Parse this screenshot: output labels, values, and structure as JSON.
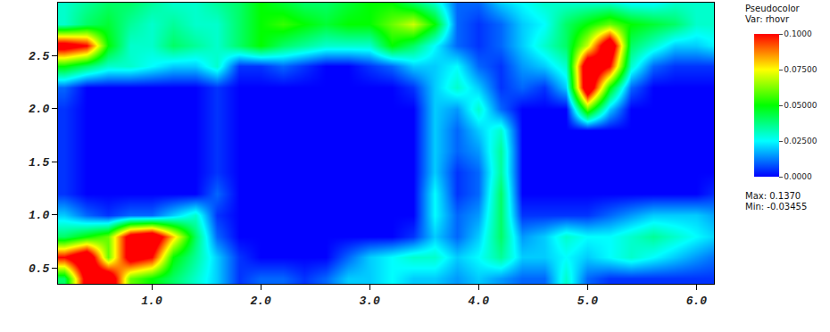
{
  "chart_data": {
    "type": "heatmap",
    "x": [
      0.2,
      0.4,
      0.6,
      0.8,
      1.0,
      1.2,
      1.4,
      1.6,
      1.8,
      2.0,
      2.2,
      2.4,
      2.6,
      2.8,
      3.0,
      3.2,
      3.4,
      3.6,
      3.8,
      4.0,
      4.2,
      4.4,
      4.6,
      4.8,
      5.0,
      5.2,
      5.4,
      5.6,
      5.8,
      6.0,
      6.2
    ],
    "y": [
      0.4,
      0.6,
      0.8,
      1.0,
      1.2,
      1.4,
      1.6,
      1.8,
      2.0,
      2.2,
      2.4,
      2.6,
      2.8,
      3.0
    ],
    "cells": [
      [
        0.04,
        0.11,
        0.12,
        0.06,
        0.05,
        0.04,
        0.03,
        0.02,
        0.005,
        0.01,
        0.01,
        0.005,
        0.01,
        0.02,
        0.02,
        0.025,
        0.02,
        0.02,
        0.015,
        0.02,
        0.015,
        0.01,
        0.01,
        0.03,
        0.01,
        0.005,
        0.005,
        0.005,
        0.005,
        0.005,
        0.005
      ],
      [
        0.1,
        0.12,
        0.06,
        0.11,
        0.1,
        0.05,
        0.035,
        0.02,
        0.005,
        0,
        0,
        0,
        0,
        0.01,
        0.02,
        0.025,
        0.03,
        0.03,
        0.02,
        0.025,
        0.035,
        0.02,
        0.02,
        0.025,
        0.02,
        0.025,
        0.03,
        0.025,
        0.02,
        0.015,
        0.01
      ],
      [
        0.04,
        0.05,
        0.06,
        0.11,
        0.12,
        0.08,
        0.04,
        0.01,
        0,
        0,
        0,
        0,
        0,
        0,
        0,
        0,
        0.005,
        0.02,
        0.01,
        0.02,
        0.04,
        0.015,
        0.02,
        0.03,
        0.025,
        0.025,
        0.03,
        0.035,
        0.03,
        0.025,
        0.02
      ],
      [
        0.02,
        0.01,
        0.005,
        0.01,
        0.01,
        0.02,
        0.03,
        0.005,
        0,
        0,
        0,
        0,
        0,
        0,
        0,
        0,
        0,
        0.025,
        0.01,
        0.015,
        0.04,
        0.005,
        0.005,
        0.005,
        0.005,
        0.01,
        0.015,
        0.02,
        0.02,
        0.02,
        0.015
      ],
      [
        0.005,
        0,
        0,
        0,
        0,
        0,
        0,
        0.01,
        0,
        0,
        0,
        0,
        0,
        0,
        0,
        0,
        0,
        0.025,
        0.005,
        0.01,
        0.04,
        0,
        0,
        0,
        0,
        0,
        0,
        0,
        0,
        0,
        0.005
      ],
      [
        0.005,
        0,
        0,
        0,
        0,
        0,
        0,
        0.005,
        0,
        0,
        0,
        0,
        0,
        0,
        0,
        0,
        0,
        0.02,
        0.005,
        0.01,
        0.035,
        0,
        0,
        0,
        0,
        0,
        0,
        0,
        0,
        0,
        0
      ],
      [
        0.005,
        0,
        0,
        0,
        0,
        0,
        0,
        0.005,
        0,
        0,
        0,
        0,
        0,
        0,
        0,
        0,
        0,
        0.02,
        0.01,
        0.015,
        0.035,
        0,
        0,
        0,
        0,
        0,
        0,
        0,
        0,
        0,
        0
      ],
      [
        0.005,
        0,
        0,
        0,
        0,
        0,
        0,
        0.005,
        0,
        0,
        0,
        0,
        0,
        0,
        0,
        0,
        0,
        0.02,
        0.01,
        0.02,
        0.03,
        0,
        0,
        0,
        0,
        0,
        0,
        0,
        0,
        0,
        0
      ],
      [
        0.005,
        0,
        0,
        0,
        0,
        0,
        0,
        0.005,
        0,
        0,
        0,
        0,
        0,
        0,
        0,
        0,
        0,
        0.02,
        0.015,
        0.03,
        0.01,
        0,
        0,
        0,
        0.06,
        0.02,
        0,
        0,
        0,
        0,
        0
      ],
      [
        0.01,
        0,
        0,
        0,
        0,
        0,
        0,
        0.005,
        0,
        0,
        0,
        0,
        0,
        0,
        0,
        0,
        0.005,
        0.02,
        0.03,
        0.02,
        0.005,
        0.01,
        0.005,
        0.02,
        0.12,
        0.05,
        0.01,
        0,
        0,
        0,
        0
      ],
      [
        0.05,
        0.04,
        0.03,
        0.03,
        0.025,
        0.02,
        0.02,
        0.03,
        0.005,
        0.005,
        0.01,
        0.005,
        0,
        0,
        0.005,
        0.01,
        0.02,
        0.02,
        0.025,
        0.01,
        0.005,
        0.015,
        0.02,
        0.03,
        0.12,
        0.1,
        0.03,
        0.01,
        0.005,
        0.005,
        0.005
      ],
      [
        0.11,
        0.1,
        0.05,
        0.03,
        0.03,
        0.04,
        0.035,
        0.03,
        0.04,
        0.05,
        0.04,
        0.035,
        0.03,
        0.03,
        0.03,
        0.05,
        0.04,
        0.025,
        0.01,
        0.005,
        0.01,
        0.02,
        0.03,
        0.04,
        0.07,
        0.12,
        0.04,
        0.03,
        0.02,
        0.02,
        0.025
      ],
      [
        0.03,
        0.04,
        0.045,
        0.035,
        0.03,
        0.035,
        0.03,
        0.03,
        0.04,
        0.05,
        0.055,
        0.05,
        0.045,
        0.05,
        0.05,
        0.06,
        0.07,
        0.05,
        0.01,
        0.005,
        0.01,
        0.02,
        0.025,
        0.04,
        0.05,
        0.06,
        0.05,
        0.045,
        0.04,
        0.03,
        0.03
      ],
      [
        0.03,
        0.035,
        0.04,
        0.04,
        0.035,
        0.03,
        0.03,
        0.035,
        0.04,
        0.05,
        0.045,
        0.04,
        0.04,
        0.045,
        0.05,
        0.05,
        0.04,
        0.03,
        0.01,
        0.01,
        0.02,
        0.025,
        0.03,
        0.03,
        0.03,
        0.03,
        0.025,
        0.025,
        0.03,
        0.03,
        0.03
      ]
    ],
    "xlim": [
      0.14,
      6.16
    ],
    "ylim": [
      0.35,
      3.0
    ],
    "xticks": [
      {
        "value": 1,
        "label": "1.0"
      },
      {
        "value": 2,
        "label": "2.0"
      },
      {
        "value": 3,
        "label": "3.0"
      },
      {
        "value": 4,
        "label": "4.0"
      },
      {
        "value": 5,
        "label": "5.0"
      },
      {
        "value": 6,
        "label": "6.0"
      }
    ],
    "yticks": [
      0.5,
      {
        "value": 1,
        "label": "1.0"
      },
      1.5,
      {
        "value": 2,
        "label": "2.0"
      },
      2.5
    ],
    "colorbar": {
      "title": [
        "Pseudocolor",
        "Var: rhovr"
      ],
      "range": [
        0,
        0.1
      ],
      "ticks": [
        {
          "value": 0.1,
          "label": "0.1000"
        },
        {
          "value": 0.075,
          "label": "0.07500"
        },
        {
          "value": 0.05,
          "label": "0.05000"
        },
        {
          "value": 0.025,
          "label": "0.02500"
        },
        {
          "value": 0,
          "label": "0.0000"
        }
      ],
      "notes": [
        "Max: 0.1370",
        "Min: -0.03455"
      ]
    },
    "grid": false
  }
}
